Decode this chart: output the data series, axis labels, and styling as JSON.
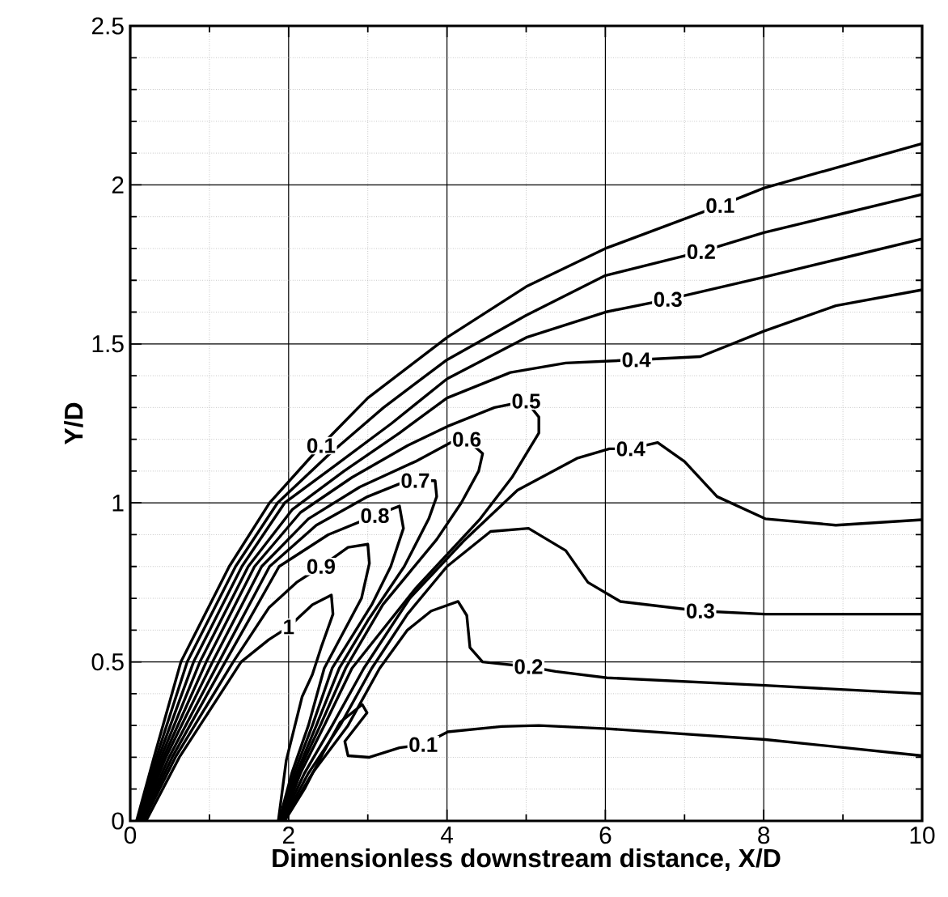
{
  "chart_data": {
    "type": "line",
    "xlabel": "Dimensionless downstream distance, X/D",
    "ylabel": "Y/D",
    "xlim": [
      0,
      10
    ],
    "xticks": [
      0,
      2,
      4,
      6,
      8,
      10
    ],
    "ylim": [
      0,
      2.5
    ],
    "yticks": [
      0,
      0.5,
      1,
      1.5,
      2,
      2.5
    ],
    "grid": true,
    "series": [
      {
        "color": "#000000",
        "x": [
          0.08,
          0.3,
          0.64,
          1.25,
          1.76,
          2.41,
          3.0,
          4.0,
          5.0,
          6.0,
          7.45,
          8.0,
          9.0,
          10
        ],
        "values": [
          0,
          0.2,
          0.5,
          0.8,
          1.0,
          1.18,
          1.33,
          1.52,
          1.68,
          1.8,
          1.935,
          1.99,
          2.06,
          2.13
        ]
      },
      {
        "color": "#000000",
        "x": [
          0.09,
          0.33,
          0.72,
          1.33,
          1.86,
          2.5,
          3.2,
          4.0,
          5.0,
          6.0,
          7.21,
          8.0,
          9.0,
          10
        ],
        "values": [
          0,
          0.2,
          0.5,
          0.8,
          1.0,
          1.15,
          1.3,
          1.45,
          1.59,
          1.715,
          1.79,
          1.85,
          1.91,
          1.97
        ]
      },
      {
        "color": "#000000",
        "x": [
          0.1,
          0.36,
          0.8,
          1.41,
          1.95,
          2.6,
          3.3,
          4.0,
          5.0,
          6.0,
          6.79,
          8.0,
          9.0,
          10
        ],
        "values": [
          0,
          0.2,
          0.5,
          0.8,
          1.0,
          1.12,
          1.25,
          1.39,
          1.52,
          1.6,
          1.64,
          1.71,
          1.77,
          1.83
        ]
      },
      {
        "color": "#000000",
        "x": [
          0.11,
          0.39,
          0.88,
          1.49,
          2.05,
          2.7,
          3.4,
          4.0,
          4.8,
          5.5,
          6.39,
          7.2,
          8.0,
          8.91,
          10
        ],
        "values": [
          0,
          0.2,
          0.5,
          0.8,
          0.98,
          1.1,
          1.22,
          1.33,
          1.41,
          1.44,
          1.45,
          1.46,
          1.54,
          1.62,
          1.67
        ]
      },
      {
        "color": "#000000",
        "x": [
          0.12,
          0.42,
          0.96,
          1.57,
          2.15,
          2.8,
          3.5,
          4.0,
          4.6,
          5.0,
          5.16,
          5.16,
          4.82,
          4.42,
          3.6,
          2.8,
          2.45,
          2.15,
          1.92
        ],
        "values": [
          0,
          0.2,
          0.5,
          0.8,
          0.97,
          1.08,
          1.18,
          1.24,
          1.3,
          1.32,
          1.27,
          1.22,
          1.08,
          0.95,
          0.73,
          0.48,
          0.3,
          0.15,
          0
        ]
      },
      {
        "color": "#000000",
        "x": [
          0.13,
          0.45,
          1.04,
          1.66,
          2.25,
          2.9,
          3.6,
          4.05,
          4.25,
          4.45,
          4.4,
          4.18,
          3.87,
          3.19,
          2.72,
          2.4,
          2.12,
          1.91
        ],
        "values": [
          0,
          0.2,
          0.5,
          0.8,
          0.95,
          1.05,
          1.13,
          1.19,
          1.2,
          1.155,
          1.1,
          1.0,
          0.885,
          0.68,
          0.48,
          0.3,
          0.15,
          0
        ]
      },
      {
        "color": "#000000",
        "x": [
          0.14,
          0.49,
          1.12,
          1.76,
          2.35,
          3.0,
          3.4,
          3.6,
          3.85,
          3.87,
          3.77,
          3.46,
          3.0,
          2.64,
          2.35,
          2.1,
          1.9
        ],
        "values": [
          0,
          0.2,
          0.5,
          0.8,
          0.93,
          1.02,
          1.06,
          1.07,
          1.07,
          1.02,
          0.95,
          0.8,
          0.63,
          0.48,
          0.3,
          0.15,
          0
        ]
      },
      {
        "color": "#000000",
        "x": [
          0.15,
          0.53,
          1.2,
          1.88,
          2.5,
          3.09,
          3.4,
          3.45,
          3.29,
          3.05,
          2.55,
          2.3,
          2.07,
          1.89
        ],
        "values": [
          0,
          0.2,
          0.5,
          0.8,
          0.9,
          0.96,
          0.99,
          0.92,
          0.8,
          0.68,
          0.48,
          0.3,
          0.15,
          0
        ]
      },
      {
        "color": "#000000",
        "x": [
          0.17,
          0.57,
          1.3,
          1.75,
          2.1,
          2.41,
          2.75,
          3.0,
          3.02,
          2.92,
          2.45,
          2.25,
          2.04,
          1.88
        ],
        "values": [
          0,
          0.2,
          0.5,
          0.67,
          0.75,
          0.8,
          0.86,
          0.87,
          0.81,
          0.7,
          0.48,
          0.3,
          0.15,
          0
        ]
      },
      {
        "color": "#000000",
        "x": [
          0.2,
          0.62,
          1.4,
          1.75,
          2.0,
          2.3,
          2.54,
          2.56,
          2.41,
          2.3,
          2.17,
          1.97,
          1.87
        ],
        "values": [
          0,
          0.2,
          0.5,
          0.57,
          0.61,
          0.68,
          0.71,
          0.65,
          0.545,
          0.46,
          0.39,
          0.19,
          0
        ]
      },
      {
        "color": "#000000",
        "x": [
          1.92,
          2.2,
          2.55,
          2.95,
          3.53,
          4.21,
          4.89,
          5.64,
          6.05,
          6.32,
          6.66,
          7.0,
          7.41,
          8.02,
          8.91,
          10
        ],
        "values": [
          0,
          0.15,
          0.3,
          0.48,
          0.7,
          0.88,
          1.04,
          1.14,
          1.17,
          1.17,
          1.19,
          1.13,
          1.02,
          0.95,
          0.93,
          0.947
        ]
      },
      {
        "color": "#000000",
        "x": [
          1.93,
          2.25,
          2.65,
          3.05,
          3.5,
          4.0,
          4.55,
          5.03,
          5.5,
          5.78,
          6.19,
          7.2,
          8.02,
          10
        ],
        "values": [
          0,
          0.15,
          0.3,
          0.48,
          0.65,
          0.8,
          0.91,
          0.92,
          0.85,
          0.75,
          0.69,
          0.66,
          0.65,
          0.65
        ]
      },
      {
        "color": "#000000",
        "x": [
          1.94,
          2.3,
          2.75,
          3.15,
          3.5,
          3.8,
          4.14,
          4.25,
          4.29,
          4.45,
          5.03,
          5.37,
          6.02,
          8.02,
          10
        ],
        "values": [
          0,
          0.15,
          0.3,
          0.48,
          0.6,
          0.66,
          0.69,
          0.646,
          0.545,
          0.5,
          0.485,
          0.47,
          0.45,
          0.426,
          0.4
        ]
      },
      {
        "color": "#000000",
        "x": [
          1.95,
          2.2,
          2.45,
          2.65,
          2.93,
          2.99,
          2.71,
          2.75,
          3.02,
          3.4,
          3.7,
          4.01,
          4.69,
          5.16,
          6.02,
          8.02,
          10
        ],
        "values": [
          0,
          0.1,
          0.22,
          0.31,
          0.366,
          0.34,
          0.25,
          0.205,
          0.2,
          0.23,
          0.24,
          0.28,
          0.297,
          0.3,
          0.29,
          0.256,
          0.205
        ]
      }
    ],
    "annotations": [
      {
        "text": "0.1",
        "x": 2.41,
        "y": 1.18
      },
      {
        "text": "0.1",
        "x": 7.45,
        "y": 1.935
      },
      {
        "text": "0.2",
        "x": 7.21,
        "y": 1.79
      },
      {
        "text": "0.3",
        "x": 6.79,
        "y": 1.64
      },
      {
        "text": "0.4",
        "x": 6.39,
        "y": 1.45
      },
      {
        "text": "0.5",
        "x": 5.0,
        "y": 1.32
      },
      {
        "text": "0.6",
        "x": 4.25,
        "y": 1.2
      },
      {
        "text": "0.7",
        "x": 3.6,
        "y": 1.07
      },
      {
        "text": "0.8",
        "x": 3.09,
        "y": 0.96
      },
      {
        "text": "0.9",
        "x": 2.41,
        "y": 0.8
      },
      {
        "text": "1",
        "x": 2.0,
        "y": 0.61
      },
      {
        "text": "0.4",
        "x": 6.32,
        "y": 1.17
      },
      {
        "text": "0.3",
        "x": 7.2,
        "y": 0.66
      },
      {
        "text": "0.2",
        "x": 5.03,
        "y": 0.485
      },
      {
        "text": "0.1",
        "x": 3.7,
        "y": 0.24
      }
    ]
  }
}
